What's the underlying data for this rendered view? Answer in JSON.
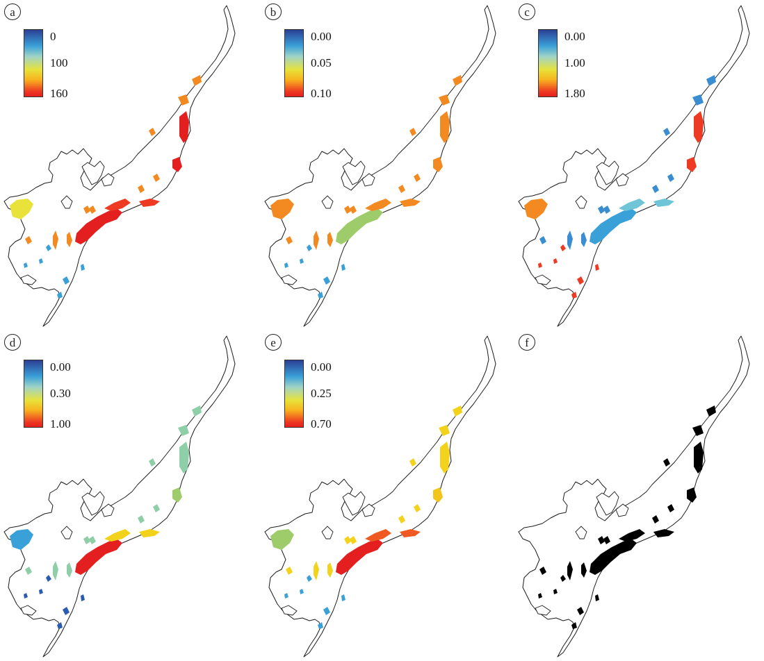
{
  "panels": [
    {
      "label": "a",
      "legend_ticks": [
        "0",
        "100",
        "160"
      ],
      "has_legend": true,
      "colors": {
        "north_strip": "#e41f1f",
        "east_patch": "#e41f1f",
        "west_blob": "#e8e23a",
        "south_coast": "#e41f1f",
        "river": "#ee3a22",
        "scatter": "#3aa0d8",
        "small_patches": "#f28a21"
      }
    },
    {
      "label": "b",
      "legend_ticks": [
        "0.00",
        "0.05",
        "0.10"
      ],
      "has_legend": true,
      "colors": {
        "north_strip": "#f28a21",
        "east_patch": "#f28a21",
        "west_blob": "#f28a21",
        "south_coast": "#9fcc6a",
        "river": "#f28a21",
        "scatter": "#3aa0d8",
        "small_patches": "#f28a21"
      }
    },
    {
      "label": "c",
      "legend_ticks": [
        "0.00",
        "1.00",
        "1.80"
      ],
      "has_legend": true,
      "colors": {
        "north_strip": "#ee3a22",
        "east_patch": "#ee3a22",
        "west_blob": "#f28a21",
        "south_coast": "#3aa0d8",
        "river": "#6fc4d8",
        "scatter": "#ee3a22",
        "small_patches": "#3a8dd0"
      }
    },
    {
      "label": "d",
      "legend_ticks": [
        "0.00",
        "0.30",
        "1.00"
      ],
      "has_legend": true,
      "colors": {
        "north_strip": "#8fcfa8",
        "east_patch": "#9fcc6a",
        "west_blob": "#3aa0d8",
        "south_coast": "#e41f1f",
        "river": "#f2d21a",
        "scatter": "#2b5bb0",
        "small_patches": "#8fcfa8"
      }
    },
    {
      "label": "e",
      "legend_ticks": [
        "0.00",
        "0.25",
        "0.70"
      ],
      "has_legend": true,
      "colors": {
        "north_strip": "#f2d21a",
        "east_patch": "#f2c51a",
        "west_blob": "#9fcc6a",
        "south_coast": "#e41f1f",
        "river": "#f05a22",
        "scatter": "#3aa0d8",
        "small_patches": "#f2d21a"
      }
    },
    {
      "label": "f",
      "legend_ticks": [],
      "has_legend": false,
      "colors": {
        "north_strip": "#000000",
        "east_patch": "#000000",
        "west_blob": "#ffffff",
        "south_coast": "#000000",
        "river": "#000000",
        "scatter": "#000000",
        "small_patches": "#000000"
      }
    }
  ]
}
